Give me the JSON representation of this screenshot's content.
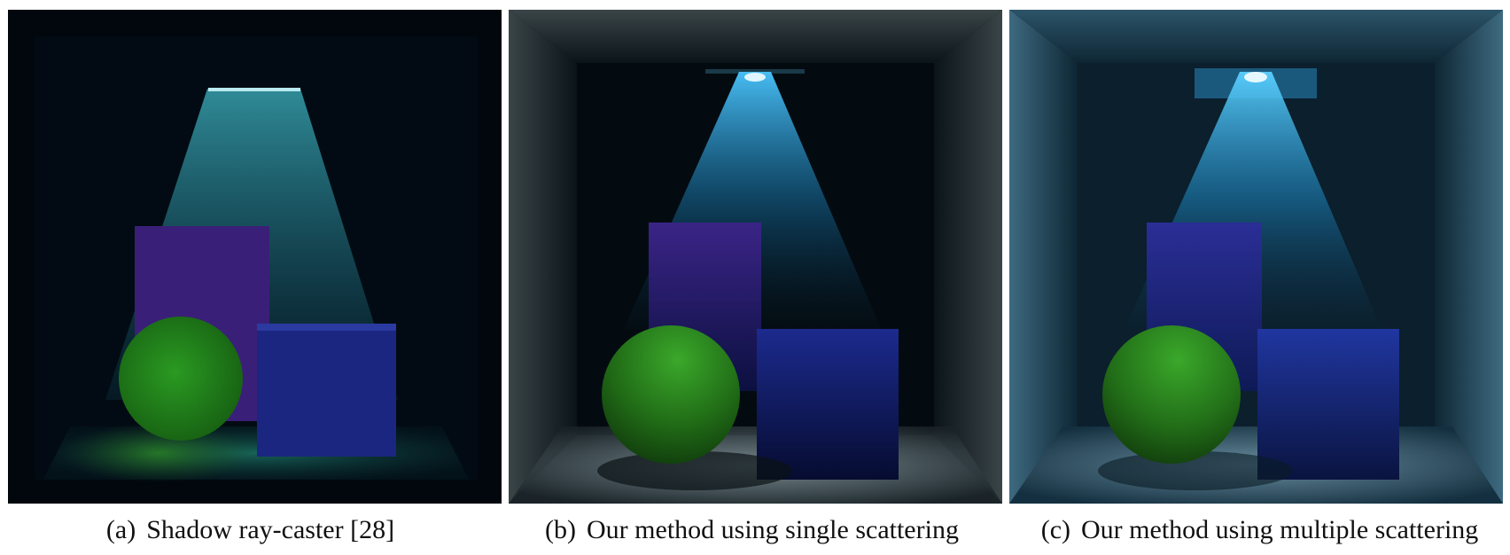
{
  "figure": {
    "panels": [
      {
        "label": "(a)",
        "caption": "Shadow ray-caster [28]"
      },
      {
        "label": "(b)",
        "caption": "Our method using single scattering"
      },
      {
        "label": "(c)",
        "caption": "Our method using multiple scattering"
      }
    ],
    "colors": {
      "light_beam": "#2aa6d8",
      "sphere": "#2f9a20",
      "box": "#1c2a8e",
      "tall_box": "#3a2486",
      "room_dark": "#02080e"
    }
  }
}
